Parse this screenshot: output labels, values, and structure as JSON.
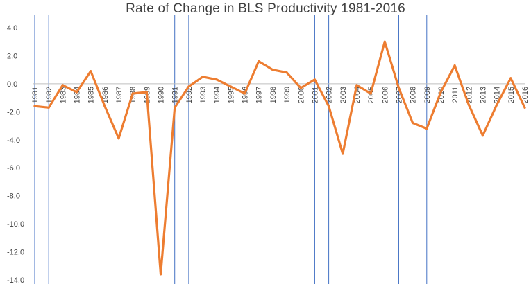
{
  "chart_data": {
    "type": "line",
    "title": "Rate of Change in BLS Productivity 1981-2016",
    "xlabel": "",
    "ylabel": "",
    "ylim": [
      -14,
      4
    ],
    "yticks": [
      "4.0",
      "2.0",
      "0.0",
      "-2.0",
      "-4.0",
      "-6.0",
      "-8.0",
      "-10.0",
      "-12.0",
      "-14.0"
    ],
    "grid": false,
    "legend": "none",
    "categories": [
      "1981",
      "1982",
      "1983",
      "1984",
      "1985",
      "1986",
      "1987",
      "1988",
      "1989",
      "1990",
      "1991",
      "1992",
      "1993",
      "1994",
      "1995",
      "1996",
      "1997",
      "1998",
      "1999",
      "2000",
      "2001",
      "2002",
      "2003",
      "2004",
      "2005",
      "2006",
      "2007",
      "2008",
      "2009",
      "2010",
      "2011",
      "2012",
      "2013",
      "2014",
      "2015",
      "2016"
    ],
    "series": [
      {
        "values": [
          -1.6,
          -1.7,
          -0.1,
          -0.6,
          0.9,
          -1.6,
          -3.9,
          -0.7,
          -0.6,
          -13.6,
          -1.7,
          -0.2,
          0.5,
          0.3,
          -0.2,
          -0.7,
          1.6,
          1.0,
          0.8,
          -0.3,
          0.3,
          -1.6,
          -5.0,
          -0.1,
          -0.7,
          3.0,
          -0.3,
          -2.8,
          -3.2,
          -0.6,
          1.3,
          -1.5,
          -3.7,
          -1.5,
          0.4,
          -1.7
        ],
        "color": "#ed7d31"
      }
    ],
    "vertical_markers": [
      "1981",
      "1982",
      "1991",
      "1992",
      "2001",
      "2002",
      "2007",
      "2009"
    ],
    "marker_color": "#4472c4",
    "axis_color": "#bfbfbf"
  }
}
